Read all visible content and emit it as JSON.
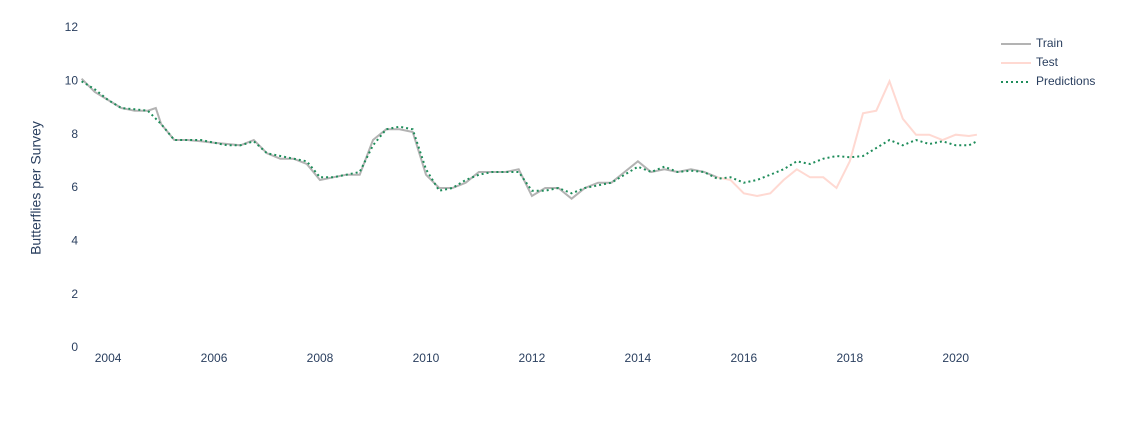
{
  "chart_data": {
    "type": "line",
    "ylabel": "Butterflies per Survey",
    "xlim": [
      2003.47,
      2020.42
    ],
    "xticks": [
      2004,
      2006,
      2008,
      2010,
      2012,
      2014,
      2016,
      2018,
      2020
    ],
    "ylim": [
      0,
      12
    ],
    "yticks": [
      0,
      2,
      4,
      6,
      8,
      10,
      12
    ],
    "grid": false,
    "legend": "top-right",
    "series": [
      {
        "name": "Train",
        "color": "#b3b3b3",
        "dash": "solid",
        "x": [
          2003.5,
          2003.75,
          2004,
          2004.25,
          2004.5,
          2004.75,
          2004.9,
          2005,
          2005.25,
          2005.5,
          2005.75,
          2006,
          2006.25,
          2006.5,
          2006.75,
          2007,
          2007.25,
          2007.5,
          2007.75,
          2008,
          2008.25,
          2008.5,
          2008.75,
          2009,
          2009.25,
          2009.5,
          2009.75,
          2010,
          2010.25,
          2010.5,
          2010.75,
          2011,
          2011.25,
          2011.5,
          2011.75,
          2012,
          2012.25,
          2012.5,
          2012.75,
          2013,
          2013.25,
          2013.5,
          2013.75,
          2014,
          2014.25,
          2014.5,
          2014.75,
          2015,
          2015.25,
          2015.5
        ],
        "values": [
          10.1,
          9.6,
          9.3,
          9.0,
          8.9,
          8.9,
          9.0,
          8.4,
          7.8,
          7.8,
          7.75,
          7.7,
          7.65,
          7.6,
          7.8,
          7.3,
          7.1,
          7.1,
          6.9,
          6.3,
          6.4,
          6.5,
          6.5,
          7.8,
          8.2,
          8.2,
          8.1,
          6.5,
          6.0,
          6.0,
          6.2,
          6.6,
          6.6,
          6.6,
          6.7,
          5.7,
          6.0,
          6.0,
          5.6,
          6.0,
          6.2,
          6.2,
          6.6,
          7.0,
          6.6,
          6.7,
          6.6,
          6.7,
          6.6,
          6.4
        ]
      },
      {
        "name": "Test",
        "color": "#ffd9d2",
        "dash": "solid",
        "x": [
          2015.5,
          2015.75,
          2016,
          2016.25,
          2016.5,
          2016.75,
          2017,
          2017.25,
          2017.5,
          2017.75,
          2018,
          2018.25,
          2018.5,
          2018.75,
          2019,
          2019.25,
          2019.5,
          2019.75,
          2020,
          2020.25,
          2020.4
        ],
        "values": [
          6.4,
          6.3,
          5.8,
          5.7,
          5.8,
          6.3,
          6.7,
          6.4,
          6.4,
          6.0,
          7.0,
          8.8,
          8.9,
          10.0,
          8.6,
          8.0,
          8.0,
          7.8,
          8.0,
          7.95,
          8.0
        ]
      },
      {
        "name": "Predictions",
        "color": "#1e8c5a",
        "dash": "dot",
        "x": [
          2003.5,
          2003.75,
          2004,
          2004.25,
          2004.5,
          2004.75,
          2005,
          2005.25,
          2005.5,
          2005.75,
          2006,
          2006.25,
          2006.5,
          2006.75,
          2007,
          2007.25,
          2007.5,
          2007.75,
          2008,
          2008.25,
          2008.5,
          2008.75,
          2009,
          2009.25,
          2009.5,
          2009.75,
          2010,
          2010.25,
          2010.5,
          2010.75,
          2011,
          2011.25,
          2011.5,
          2011.75,
          2012,
          2012.25,
          2012.5,
          2012.75,
          2013,
          2013.25,
          2013.5,
          2013.75,
          2014,
          2014.25,
          2014.5,
          2014.75,
          2015,
          2015.25,
          2015.5,
          2015.75,
          2016,
          2016.25,
          2016.5,
          2016.75,
          2017,
          2017.25,
          2017.5,
          2017.75,
          2018,
          2018.25,
          2018.5,
          2018.75,
          2019,
          2019.25,
          2019.5,
          2019.75,
          2020,
          2020.25,
          2020.4
        ],
        "values": [
          10.0,
          9.7,
          9.3,
          9.0,
          8.95,
          8.9,
          8.4,
          7.8,
          7.8,
          7.8,
          7.7,
          7.6,
          7.6,
          7.75,
          7.3,
          7.2,
          7.1,
          7.0,
          6.4,
          6.4,
          6.5,
          6.6,
          7.6,
          8.2,
          8.3,
          8.2,
          6.7,
          5.9,
          6.0,
          6.3,
          6.5,
          6.6,
          6.6,
          6.6,
          5.9,
          5.9,
          6.0,
          5.8,
          6.0,
          6.1,
          6.2,
          6.5,
          6.8,
          6.6,
          6.8,
          6.6,
          6.65,
          6.6,
          6.35,
          6.4,
          6.2,
          6.3,
          6.5,
          6.7,
          7.0,
          6.9,
          7.1,
          7.2,
          7.15,
          7.2,
          7.5,
          7.8,
          7.6,
          7.8,
          7.65,
          7.75,
          7.6,
          7.6,
          7.75
        ]
      }
    ]
  }
}
